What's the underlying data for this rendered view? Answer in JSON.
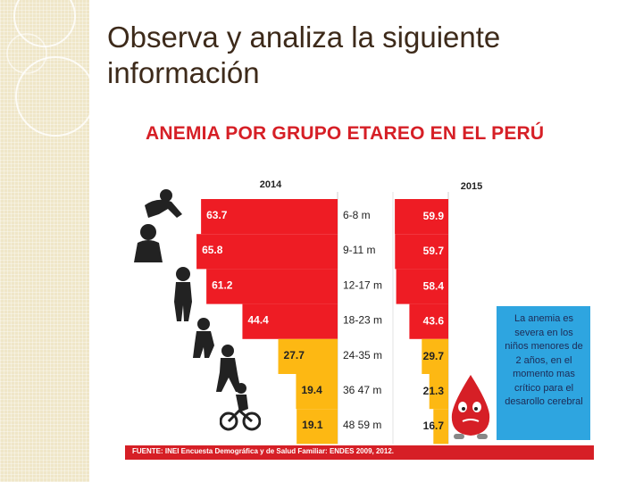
{
  "slide": {
    "title_line1": "Observa y analiza la siguiente",
    "title_line2": "información"
  },
  "chart_data": {
    "type": "bar",
    "title": "ANEMIA POR GRUPO ETAREO EN EL PERÚ",
    "categories": [
      "6-8 m",
      "9-11 m",
      "12-17 m",
      "18-23 m",
      "24-35 m",
      "36 47 m",
      "48 59 m"
    ],
    "series": [
      {
        "name": "2014",
        "values": [
          63.7,
          65.8,
          61.2,
          44.4,
          27.7,
          19.4,
          19.1
        ]
      },
      {
        "name": "2015",
        "values": [
          59.9,
          59.7,
          58.4,
          43.6,
          29.7,
          21.3,
          16.7
        ]
      }
    ],
    "orientation": "horizontal-mirrored",
    "xlim": [
      0,
      70
    ],
    "colors": {
      "high": "#ee1c24",
      "low": "#fdb813"
    }
  },
  "callout": {
    "text": "La anemia es severa en los niños menores de 2 años, en el momento mas crítico para el desarollo cerebral"
  },
  "source": {
    "text": "FUENTE: INEI Encuesta Demográfica y de Salud Familiar: ENDES 2009, 2012."
  }
}
